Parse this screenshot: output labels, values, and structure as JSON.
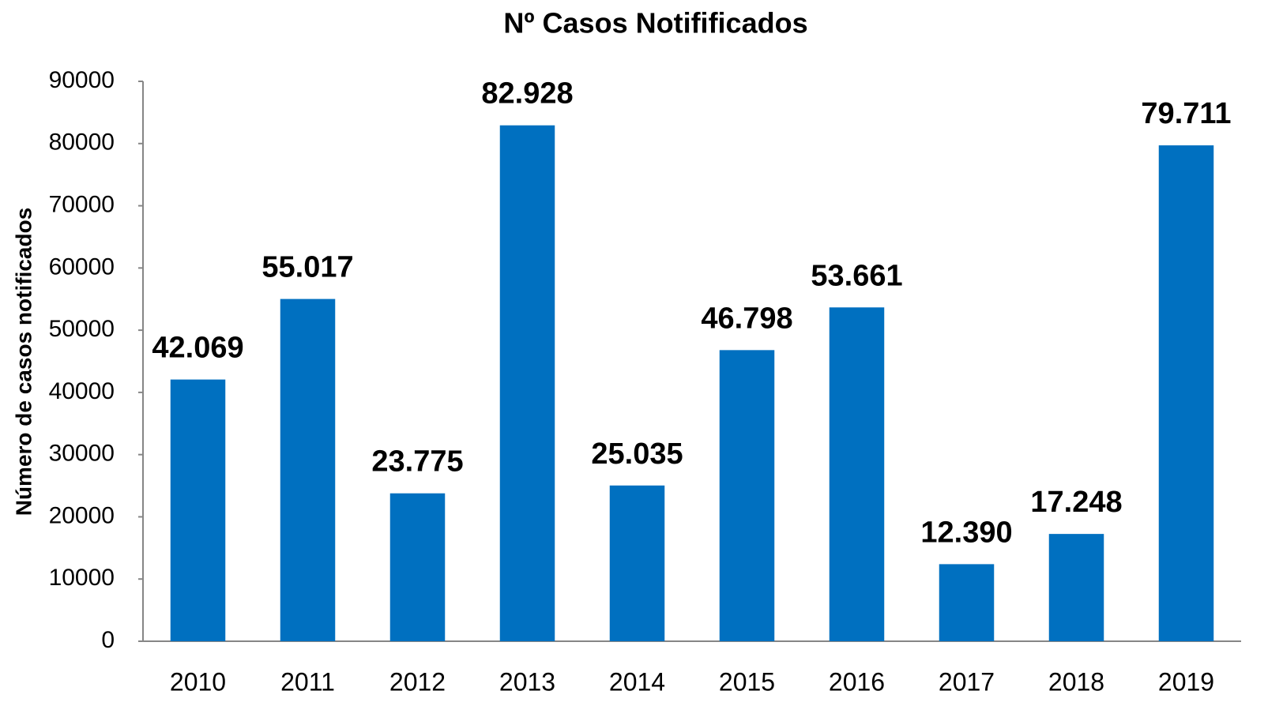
{
  "chart_data": {
    "type": "bar",
    "title": "Nº Casos Notifificados",
    "y_label": "Número de casos notificados",
    "categories": [
      "2010",
      "2011",
      "2012",
      "2013",
      "2014",
      "2015",
      "2016",
      "2017",
      "2018",
      "2019"
    ],
    "values": [
      42069,
      55017,
      23775,
      82928,
      25035,
      46798,
      53661,
      12390,
      17248,
      79711
    ],
    "value_labels": [
      "42.069",
      "55.017",
      "23.775",
      "82.928",
      "25.035",
      "46.798",
      "53.661",
      "12.390",
      "17.248",
      "79.711"
    ],
    "color": "#0070c0",
    "ylim": [
      0,
      90000
    ],
    "yticks": [
      0,
      10000,
      20000,
      30000,
      40000,
      50000,
      60000,
      70000,
      80000,
      90000
    ],
    "grid": false
  }
}
